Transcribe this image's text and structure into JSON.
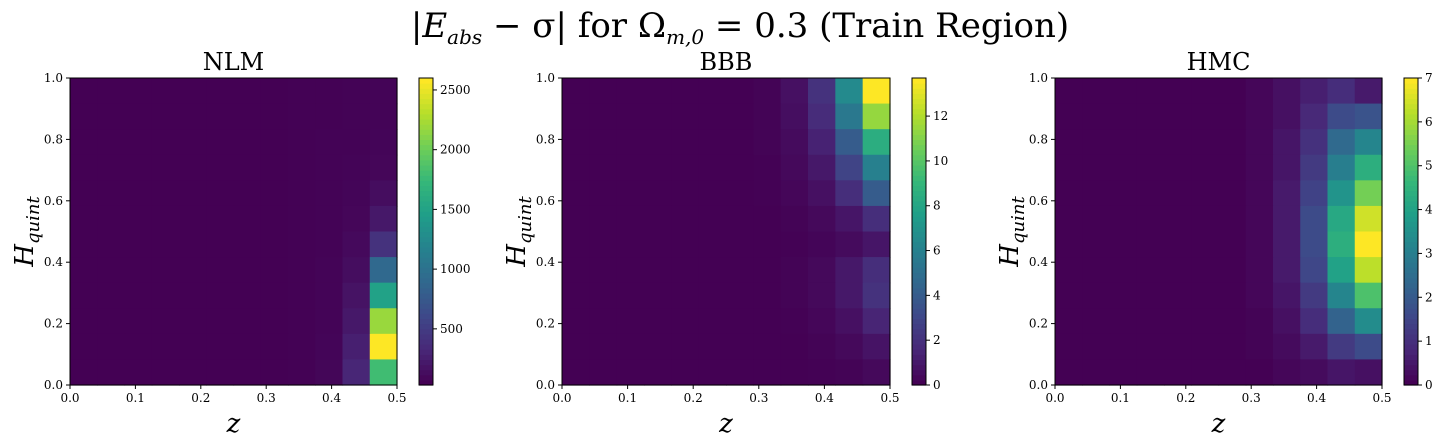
{
  "figure": {
    "title": "|E_abs − σ| for Ω_m,0 = 0.3 (Train Region)",
    "title_parts": {
      "prefix": "|",
      "E": "E",
      "abs_sub": "abs",
      "minus_sigma": " − σ|",
      "for": " for ",
      "Omega": "Ω",
      "omega_sub": "m,0",
      "rest": " = 0.3 (Train Region)"
    }
  },
  "colors": {
    "viridis": [
      "#440154",
      "#482878",
      "#3e4989",
      "#31688e",
      "#26828e",
      "#1f9e89",
      "#35b779",
      "#6ece58",
      "#b5de2b",
      "#fde725"
    ],
    "frame": "#000000"
  },
  "chart_data": [
    {
      "type": "heatmap",
      "title": "NLM",
      "xlabel": "z",
      "ylabel": "H_quint",
      "ylabel_parts": {
        "main": "H",
        "sub": "quint"
      },
      "xlim": [
        0.0,
        0.5
      ],
      "ylim": [
        0.0,
        1.0
      ],
      "xticks": [
        "0.0",
        "0.1",
        "0.2",
        "0.3",
        "0.4",
        "0.5"
      ],
      "yticks": [
        "0.0",
        "0.2",
        "0.4",
        "0.6",
        "0.8",
        "1.0"
      ],
      "colorbar": {
        "min": 30,
        "max": 2600,
        "ticks": [
          "500",
          "1000",
          "1500",
          "2000",
          "2500"
        ],
        "tick_values": [
          500,
          1000,
          1500,
          2000,
          2500
        ]
      },
      "z_grid": [
        [
          30,
          30,
          30,
          30,
          30,
          30,
          30,
          30,
          35,
          40,
          45,
          50
        ],
        [
          30,
          30,
          30,
          30,
          30,
          30,
          30,
          30,
          35,
          40,
          45,
          50
        ],
        [
          30,
          30,
          30,
          30,
          30,
          30,
          30,
          30,
          35,
          42,
          48,
          60
        ],
        [
          30,
          30,
          30,
          30,
          30,
          30,
          30,
          30,
          35,
          42,
          50,
          70
        ],
        [
          30,
          30,
          30,
          30,
          30,
          30,
          30,
          30,
          35,
          45,
          60,
          120
        ],
        [
          30,
          30,
          30,
          30,
          30,
          30,
          30,
          30,
          35,
          45,
          70,
          200
        ],
        [
          30,
          30,
          30,
          30,
          30,
          30,
          30,
          30,
          35,
          48,
          90,
          400
        ],
        [
          30,
          30,
          30,
          30,
          30,
          30,
          30,
          30,
          36,
          50,
          120,
          900
        ],
        [
          30,
          30,
          30,
          30,
          30,
          30,
          30,
          30,
          36,
          52,
          160,
          1500
        ],
        [
          30,
          30,
          30,
          30,
          30,
          30,
          30,
          30,
          37,
          55,
          200,
          2200
        ],
        [
          30,
          30,
          30,
          30,
          30,
          30,
          30,
          30,
          38,
          60,
          250,
          2600
        ],
        [
          30,
          30,
          30,
          30,
          30,
          30,
          30,
          30,
          38,
          65,
          300,
          1800
        ]
      ]
    },
    {
      "type": "heatmap",
      "title": "BBB",
      "xlabel": "z",
      "ylabel": "H_quint",
      "ylabel_parts": {
        "main": "H",
        "sub": "quint"
      },
      "xlim": [
        0.0,
        0.5
      ],
      "ylim": [
        0.0,
        1.0
      ],
      "xticks": [
        "0.0",
        "0.1",
        "0.2",
        "0.3",
        "0.4",
        "0.5"
      ],
      "yticks": [
        "0.0",
        "0.2",
        "0.4",
        "0.6",
        "0.8",
        "1.0"
      ],
      "colorbar": {
        "min": 0,
        "max": 13.7,
        "ticks": [
          "0",
          "2",
          "4",
          "6",
          "8",
          "10",
          "12"
        ],
        "tick_values": [
          0,
          2,
          4,
          6,
          8,
          10,
          12
        ]
      },
      "z_grid": [
        [
          0,
          0,
          0,
          0,
          0,
          0,
          0,
          0.1,
          0.6,
          2.0,
          6.5,
          13.7
        ],
        [
          0,
          0,
          0,
          0,
          0,
          0,
          0,
          0.1,
          0.5,
          1.7,
          5.5,
          11.5
        ],
        [
          0,
          0,
          0,
          0,
          0,
          0,
          0,
          0.1,
          0.4,
          1.3,
          4.0,
          8.5
        ],
        [
          0,
          0,
          0,
          0,
          0,
          0,
          0,
          0.05,
          0.3,
          0.9,
          2.8,
          6.0
        ],
        [
          0,
          0,
          0,
          0,
          0,
          0,
          0,
          0.05,
          0.2,
          0.6,
          1.8,
          4.0
        ],
        [
          0,
          0,
          0,
          0,
          0,
          0,
          0,
          0,
          0.1,
          0.3,
          0.8,
          1.8
        ],
        [
          0,
          0,
          0,
          0,
          0,
          0,
          0,
          0,
          0.05,
          0.15,
          0.4,
          0.8
        ],
        [
          0,
          0,
          0,
          0,
          0,
          0,
          0,
          0,
          0.1,
          0.3,
          0.9,
          1.8
        ],
        [
          0,
          0,
          0,
          0,
          0,
          0,
          0,
          0,
          0.1,
          0.3,
          0.9,
          2.0
        ],
        [
          0,
          0,
          0,
          0,
          0,
          0,
          0,
          0,
          0.05,
          0.2,
          0.6,
          1.4
        ],
        [
          0,
          0,
          0,
          0,
          0,
          0,
          0,
          0,
          0,
          0.1,
          0.3,
          0.7
        ],
        [
          0,
          0,
          0,
          0,
          0,
          0,
          0,
          0,
          0,
          0.05,
          0.1,
          0.3
        ]
      ]
    },
    {
      "type": "heatmap",
      "title": "HMC",
      "xlabel": "z",
      "ylabel": "H_quint",
      "ylabel_parts": {
        "main": "H",
        "sub": "quint"
      },
      "xlim": [
        0.0,
        0.5
      ],
      "ylim": [
        0.0,
        1.0
      ],
      "xticks": [
        "0.0",
        "0.1",
        "0.2",
        "0.3",
        "0.4",
        "0.5"
      ],
      "yticks": [
        "0.0",
        "0.2",
        "0.4",
        "0.6",
        "0.8",
        "1.0"
      ],
      "colorbar": {
        "min": 0,
        "max": 7,
        "ticks": [
          "0",
          "1",
          "2",
          "3",
          "4",
          "5",
          "6",
          "7"
        ],
        "tick_values": [
          0,
          1,
          2,
          3,
          4,
          5,
          6,
          7
        ]
      },
      "z_grid": [
        [
          0,
          0,
          0,
          0,
          0,
          0,
          0,
          0.1,
          0.3,
          0.6,
          0.9,
          0.5
        ],
        [
          0,
          0,
          0,
          0,
          0,
          0,
          0,
          0.1,
          0.3,
          0.8,
          1.6,
          1.8
        ],
        [
          0,
          0,
          0,
          0,
          0,
          0,
          0,
          0.1,
          0.4,
          1.0,
          2.4,
          3.2
        ],
        [
          0,
          0,
          0,
          0,
          0,
          0,
          0,
          0.1,
          0.4,
          1.2,
          3.0,
          4.4
        ],
        [
          0,
          0,
          0,
          0,
          0,
          0,
          0,
          0.1,
          0.5,
          1.4,
          3.6,
          5.5
        ],
        [
          0,
          0,
          0,
          0,
          0,
          0,
          0,
          0.1,
          0.5,
          1.6,
          4.2,
          6.5
        ],
        [
          0,
          0,
          0,
          0,
          0,
          0,
          0,
          0.1,
          0.5,
          1.6,
          4.4,
          7.0
        ],
        [
          0,
          0,
          0,
          0,
          0,
          0,
          0,
          0.1,
          0.5,
          1.5,
          4.0,
          6.3
        ],
        [
          0,
          0,
          0,
          0,
          0,
          0,
          0,
          0.1,
          0.4,
          1.2,
          3.2,
          5.0
        ],
        [
          0,
          0,
          0,
          0,
          0,
          0,
          0,
          0.05,
          0.3,
          0.9,
          2.2,
          3.4
        ],
        [
          0,
          0,
          0,
          0,
          0,
          0,
          0,
          0.05,
          0.2,
          0.5,
          1.2,
          1.6
        ],
        [
          0,
          0,
          0,
          0,
          0,
          0,
          0,
          0,
          0.1,
          0.2,
          0.4,
          0.3
        ]
      ]
    }
  ]
}
